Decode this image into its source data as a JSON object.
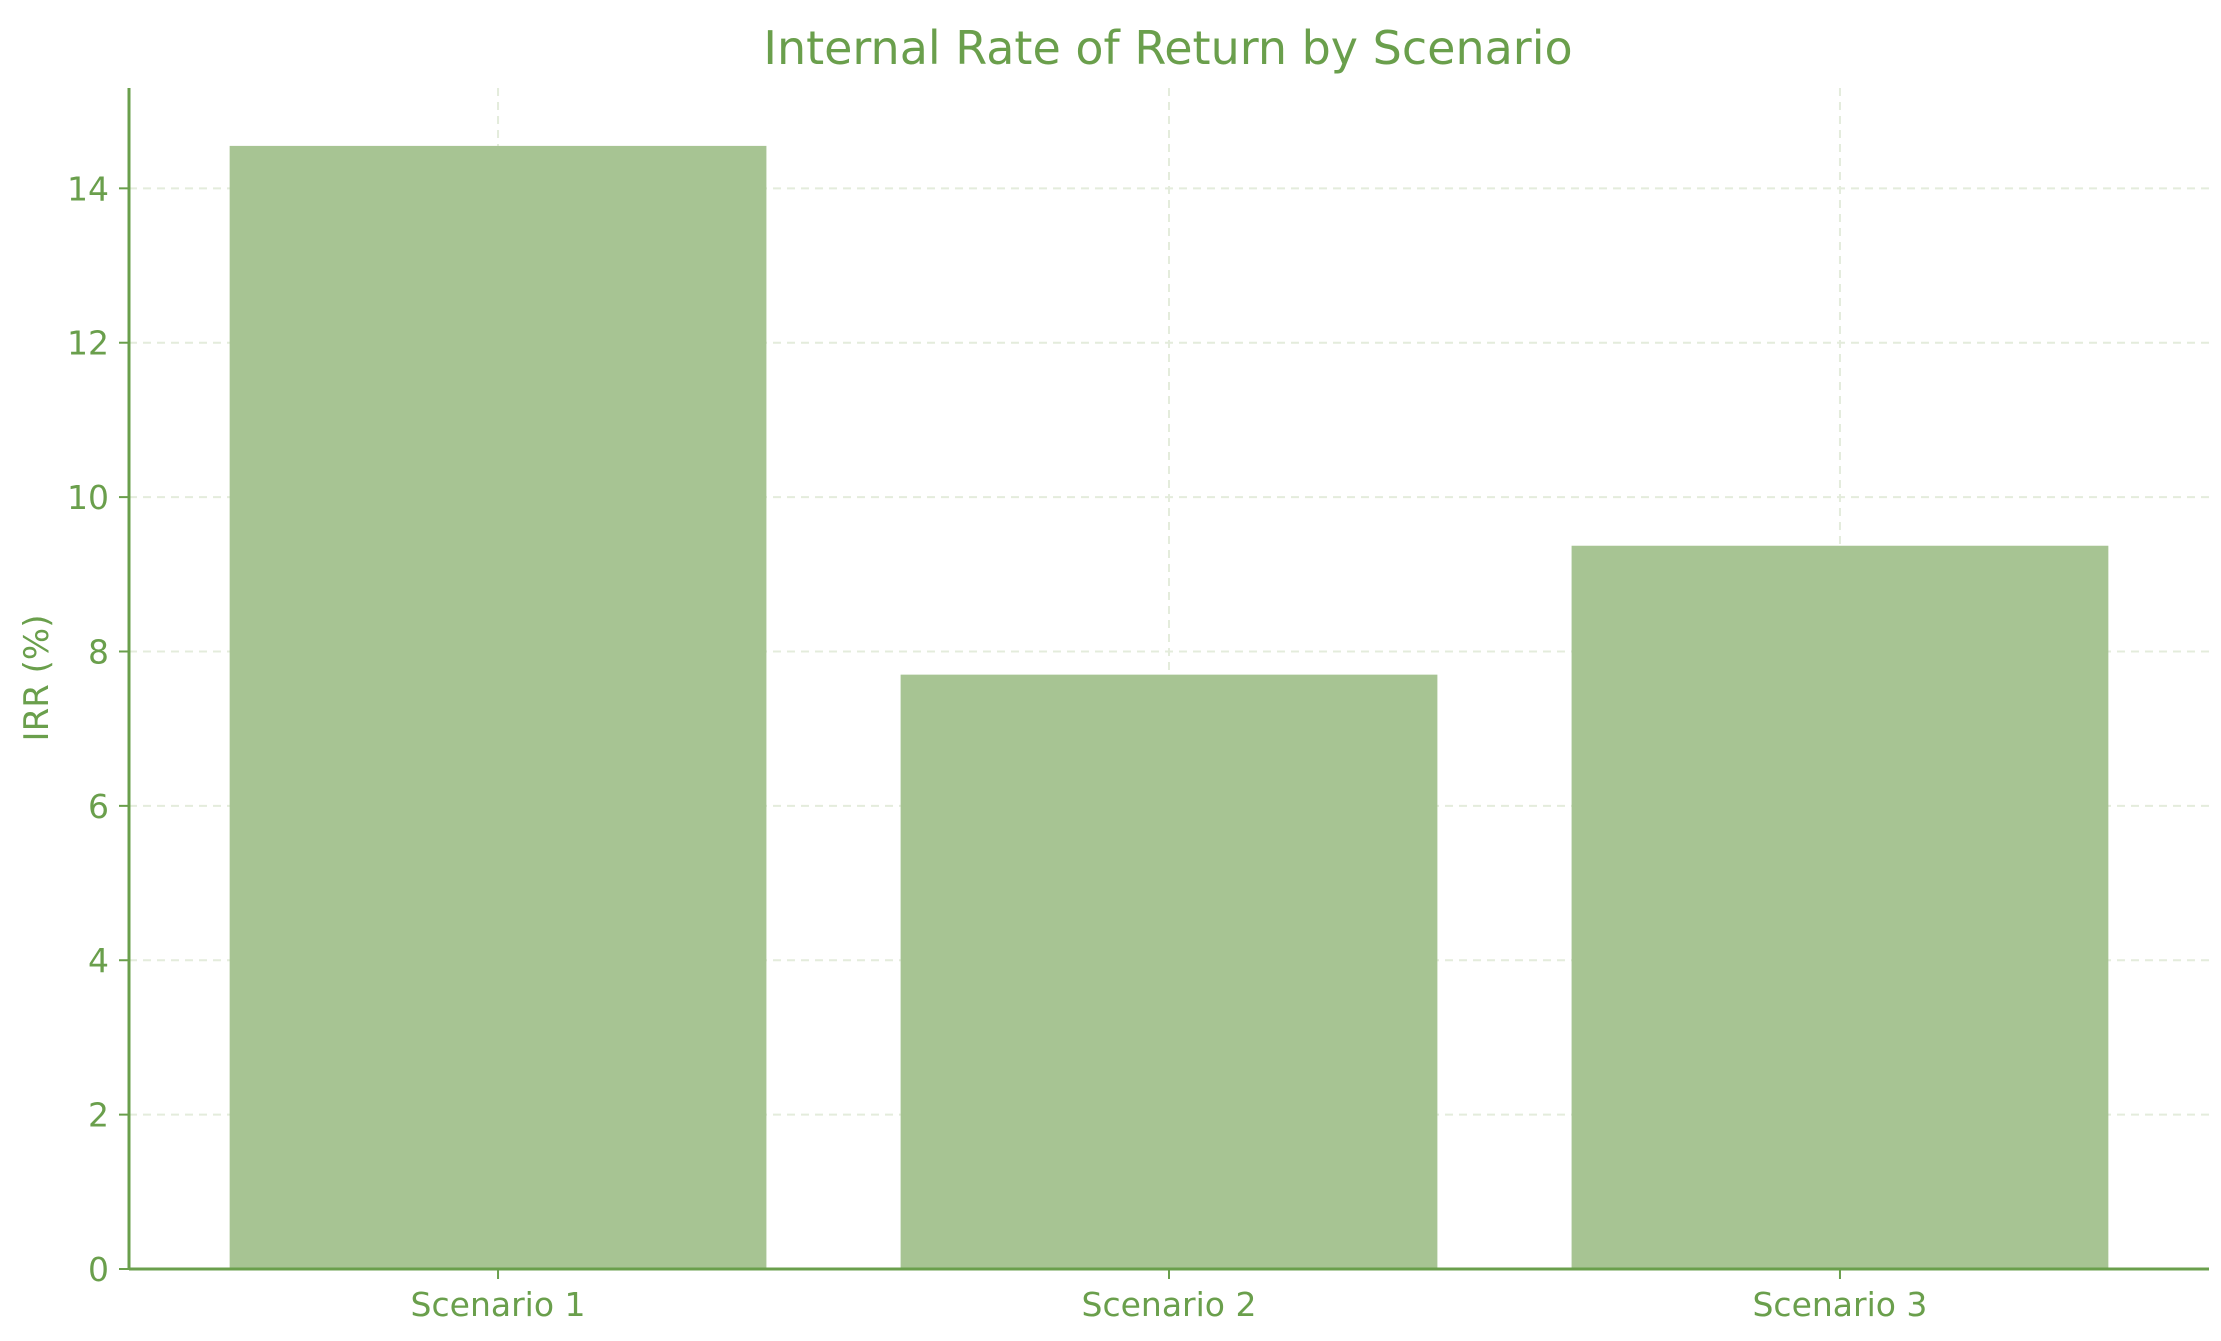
{
  "chart_data": {
    "type": "bar",
    "title": "Internal Rate of Return by Scenario",
    "xlabel": "",
    "ylabel": "IRR (%)",
    "categories": [
      "Scenario 1",
      "Scenario 2",
      "Scenario 3"
    ],
    "values": [
      14.55,
      7.7,
      9.37
    ],
    "ylim": [
      0,
      15.3
    ],
    "yticks": [
      0,
      2,
      4,
      6,
      8,
      10,
      12,
      14
    ],
    "grid": true,
    "legend": "none",
    "colors": {
      "bar": "#a7c493",
      "text": "#6a9f4c",
      "axis": "#6a9f4c",
      "grid": "#e4ecdc"
    }
  }
}
